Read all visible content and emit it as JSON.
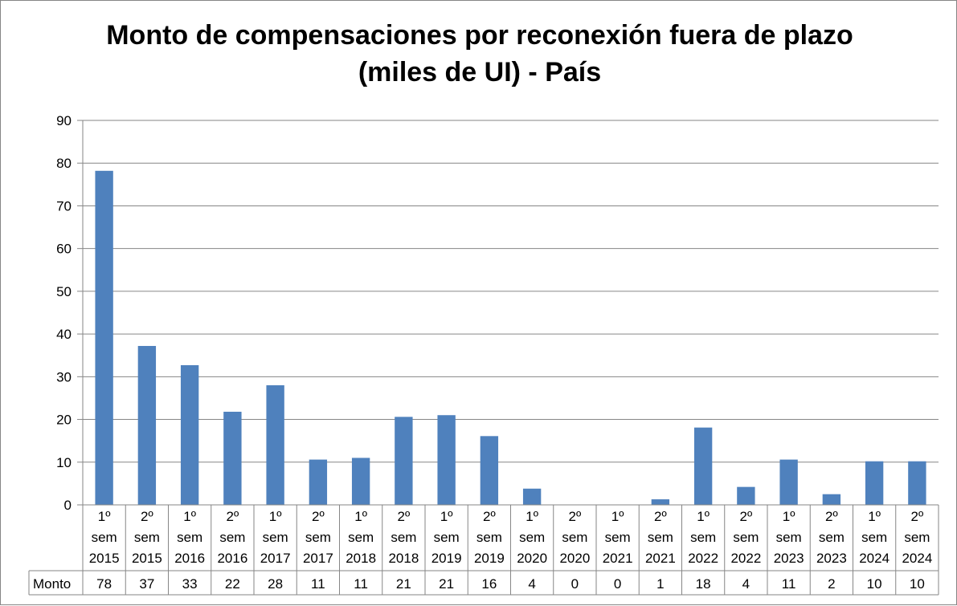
{
  "chart_data": {
    "type": "bar",
    "title_lines": [
      "Monto de compensaciones por reconexión fuera de plazo",
      "(miles de UI) - País"
    ],
    "categories": [
      [
        "1º",
        "sem",
        "2015"
      ],
      [
        "2º",
        "sem",
        "2015"
      ],
      [
        "1º",
        "sem",
        "2016"
      ],
      [
        "2º",
        "sem",
        "2016"
      ],
      [
        "1º",
        "sem",
        "2017"
      ],
      [
        "2º",
        "sem",
        "2017"
      ],
      [
        "1º",
        "sem",
        "2018"
      ],
      [
        "2º",
        "sem",
        "2018"
      ],
      [
        "1º",
        "sem",
        "2019"
      ],
      [
        "2º",
        "sem",
        "2019"
      ],
      [
        "1º",
        "sem",
        "2020"
      ],
      [
        "2º",
        "sem",
        "2020"
      ],
      [
        "1º",
        "sem",
        "2021"
      ],
      [
        "2º",
        "sem",
        "2021"
      ],
      [
        "1º",
        "sem",
        "2022"
      ],
      [
        "2º",
        "sem",
        "2022"
      ],
      [
        "1º",
        "sem",
        "2023"
      ],
      [
        "2º",
        "sem",
        "2023"
      ],
      [
        "1º",
        "sem",
        "2024"
      ],
      [
        "2º",
        "sem",
        "2024"
      ]
    ],
    "series": [
      {
        "name": "Monto",
        "values": [
          78.2,
          37.2,
          32.7,
          21.8,
          28.0,
          10.6,
          11.0,
          20.6,
          21.0,
          16.1,
          3.8,
          0.0,
          0.0,
          1.3,
          18.1,
          4.2,
          10.6,
          2.5,
          10.2,
          10.2
        ],
        "labels": [
          "78",
          "37",
          "33",
          "22",
          "28",
          "11",
          "11",
          "21",
          "21",
          "16",
          "4",
          "0",
          "0",
          "1",
          "18",
          "4",
          "11",
          "2",
          "10",
          "10"
        ],
        "color": "#4f81bd"
      }
    ],
    "ylim": [
      0,
      90
    ],
    "yticks": [
      "0",
      "10",
      "20",
      "30",
      "40",
      "50",
      "60",
      "70",
      "80",
      "90"
    ],
    "grid": true,
    "legend": "data-table",
    "colors": {
      "bar": "#4f81bd",
      "grid": "#868686",
      "axis": "#868686",
      "text": "#000000"
    }
  }
}
